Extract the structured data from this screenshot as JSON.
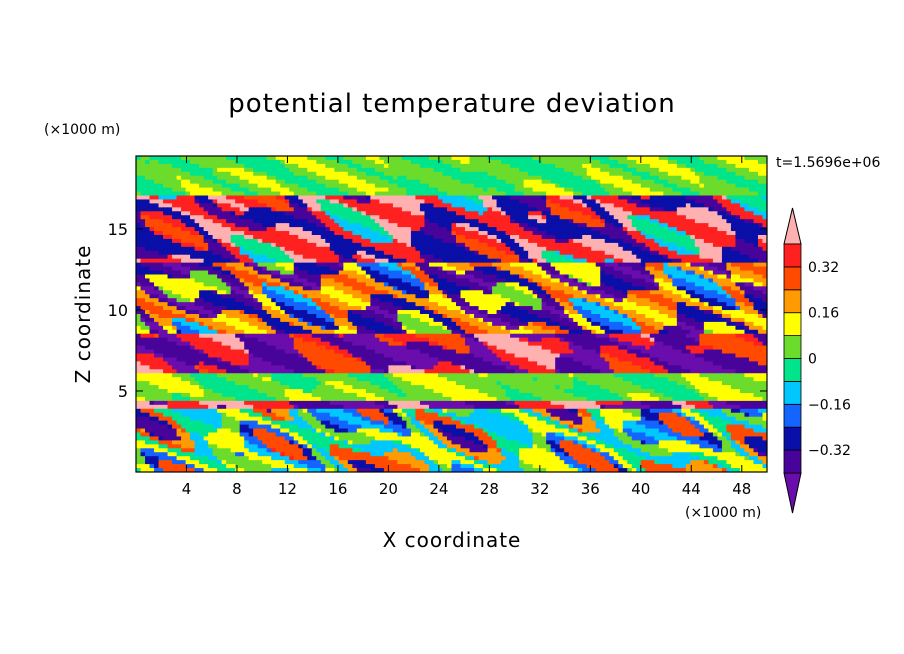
{
  "chart_data": {
    "type": "heatmap",
    "title": "potential temperature deviation",
    "xlabel": "X coordinate",
    "ylabel": "Z coordinate",
    "x_unit": "(×1000 m)",
    "y_unit": "(×1000 m)",
    "time_label": "t=1.5696e+06",
    "xlim": [
      0,
      50
    ],
    "ylim": [
      0,
      19.5
    ],
    "x_ticks": [
      4,
      8,
      12,
      16,
      20,
      24,
      28,
      32,
      36,
      40,
      44,
      48
    ],
    "y_ticks": [
      5,
      10,
      15
    ],
    "colorbar": {
      "levels": [
        -0.4,
        -0.32,
        -0.24,
        -0.16,
        -0.08,
        0,
        0.08,
        0.16,
        0.24,
        0.32,
        0.4
      ],
      "tick_labels": [
        "0.32",
        "0.16",
        "0",
        "−0.16",
        "−0.32"
      ],
      "tick_values": [
        0.32,
        0.16,
        0,
        -0.16,
        -0.32
      ],
      "colors": [
        "#6a0dad",
        "#48049a",
        "#0a0fa8",
        "#1464ff",
        "#00c8ff",
        "#00e58c",
        "#6cdc2c",
        "#ffff00",
        "#ff9a00",
        "#ff4a00",
        "#ff2020",
        "#ffb0b0"
      ]
    },
    "layers": [
      {
        "z": [
          0,
          4
        ],
        "description_value": "alternating",
        "values": [
          0.3,
          -0.2,
          0.1,
          -0.1,
          0.25,
          -0.3
        ]
      },
      {
        "z": [
          4,
          4.5
        ],
        "values": [
          -0.4,
          0.4
        ]
      },
      {
        "z": [
          4.5,
          6
        ],
        "values": [
          0.08,
          0.0
        ]
      },
      {
        "z": [
          6,
          8.5
        ],
        "values": [
          0.4,
          -0.4,
          0.3
        ]
      },
      {
        "z": [
          8.5,
          13
        ],
        "values": [
          -0.2,
          0.2,
          -0.35,
          0.1
        ]
      },
      {
        "z": [
          13,
          17
        ],
        "values": [
          0.35,
          -0.3,
          0.4,
          -0.1
        ]
      },
      {
        "z": [
          17,
          19.5
        ],
        "values": [
          0.05,
          0.0
        ]
      }
    ]
  }
}
